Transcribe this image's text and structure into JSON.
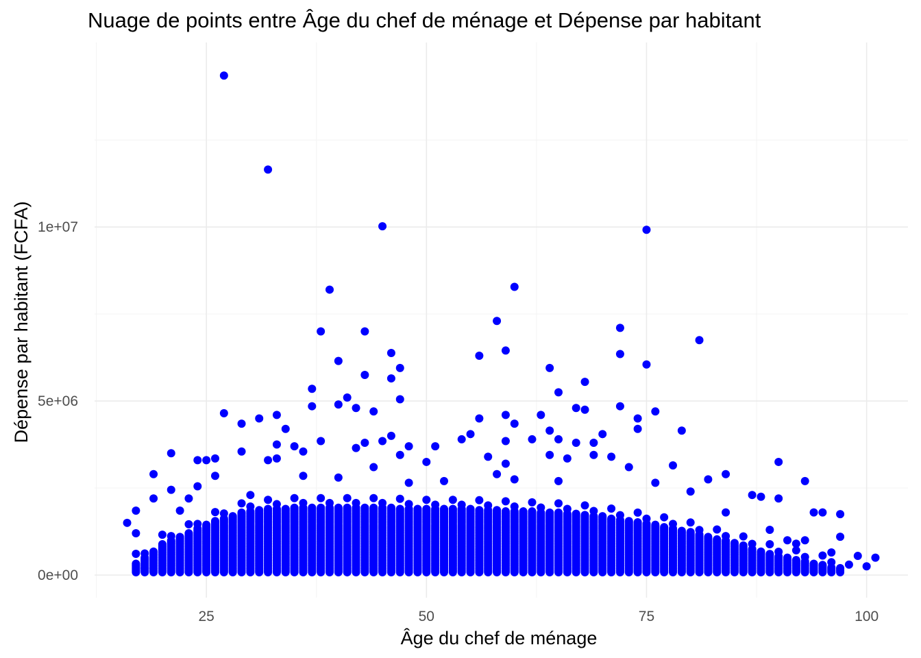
{
  "colors": {
    "point": "#0000ff",
    "background": "#ffffff",
    "grid_major": "#ebebeb",
    "grid_minor": "#f3f3f3",
    "tick_text": "#4d4d4d",
    "title_text": "#000000"
  },
  "chart_data": {
    "type": "scatter",
    "title": "Nuage de points entre Âge du chef de ménage et Dépense par habitant",
    "xlabel": "Âge du chef de ménage",
    "ylabel": "Dépense par habitant (FCFA)",
    "xlim": [
      12.3,
      104.7
    ],
    "ylim": [
      -650000,
      15300000
    ],
    "x_ticks": [
      25,
      50,
      75,
      100
    ],
    "x_tick_labels": [
      "25",
      "50",
      "75",
      "100"
    ],
    "y_ticks": [
      0,
      5000000,
      10000000
    ],
    "y_tick_labels": [
      "0e+00",
      "5e+06",
      "1e+07"
    ],
    "grid": true,
    "legend": "none",
    "dense_band_note": "Dense vertical columns of points at each integer age 17–97 from about 0 to ~1.9e+06, rendered from the 'band' profile below",
    "band": {
      "age_min": 17,
      "age_max": 97,
      "y_min": 80000,
      "profile": [
        [
          17,
          350000
        ],
        [
          18,
          500000
        ],
        [
          19,
          700000
        ],
        [
          20,
          900000
        ],
        [
          21,
          1000000
        ],
        [
          22,
          1100000
        ],
        [
          23,
          1200000
        ],
        [
          24,
          1350000
        ],
        [
          25,
          1450000
        ],
        [
          26,
          1550000
        ],
        [
          27,
          1650000
        ],
        [
          28,
          1720000
        ],
        [
          29,
          1800000
        ],
        [
          30,
          1850000
        ],
        [
          32,
          1900000
        ],
        [
          35,
          1950000
        ],
        [
          40,
          1950000
        ],
        [
          45,
          1950000
        ],
        [
          50,
          1900000
        ],
        [
          55,
          1900000
        ],
        [
          60,
          1850000
        ],
        [
          65,
          1800000
        ],
        [
          70,
          1700000
        ],
        [
          72,
          1600000
        ],
        [
          75,
          1500000
        ],
        [
          78,
          1350000
        ],
        [
          80,
          1250000
        ],
        [
          82,
          1100000
        ],
        [
          84,
          1000000
        ],
        [
          86,
          850000
        ],
        [
          88,
          700000
        ],
        [
          90,
          550000
        ],
        [
          92,
          450000
        ],
        [
          94,
          350000
        ],
        [
          96,
          250000
        ],
        [
          97,
          200000
        ]
      ]
    },
    "points": [
      [
        27,
        14350000
      ],
      [
        32,
        11650000
      ],
      [
        45,
        10020000
      ],
      [
        75,
        9920000
      ],
      [
        39,
        8200000
      ],
      [
        60,
        8280000
      ],
      [
        58,
        7300000
      ],
      [
        38,
        7000000
      ],
      [
        43,
        7000000
      ],
      [
        72,
        7100000
      ],
      [
        81,
        6750000
      ],
      [
        59,
        6450000
      ],
      [
        46,
        6380000
      ],
      [
        72,
        6350000
      ],
      [
        56,
        6300000
      ],
      [
        40,
        6150000
      ],
      [
        75,
        6050000
      ],
      [
        47,
        5950000
      ],
      [
        64,
        5950000
      ],
      [
        43,
        5750000
      ],
      [
        46,
        5650000
      ],
      [
        68,
        5550000
      ],
      [
        37,
        5350000
      ],
      [
        65,
        5250000
      ],
      [
        41,
        5100000
      ],
      [
        47,
        5050000
      ],
      [
        40,
        4900000
      ],
      [
        37,
        4850000
      ],
      [
        42,
        4800000
      ],
      [
        67,
        4800000
      ],
      [
        72,
        4850000
      ],
      [
        68,
        4750000
      ],
      [
        76,
        4700000
      ],
      [
        44,
        4700000
      ],
      [
        27,
        4650000
      ],
      [
        33,
        4600000
      ],
      [
        59,
        4600000
      ],
      [
        63,
        4600000
      ],
      [
        31,
        4500000
      ],
      [
        56,
        4500000
      ],
      [
        74,
        4500000
      ],
      [
        29,
        4350000
      ],
      [
        60,
        4350000
      ],
      [
        74,
        4200000
      ],
      [
        34,
        4200000
      ],
      [
        79,
        4150000
      ],
      [
        64,
        4150000
      ],
      [
        70,
        4050000
      ],
      [
        55,
        4050000
      ],
      [
        46,
        4000000
      ],
      [
        54,
        3900000
      ],
      [
        62,
        3900000
      ],
      [
        45,
        3850000
      ],
      [
        59,
        3850000
      ],
      [
        65,
        3900000
      ],
      [
        38,
        3850000
      ],
      [
        69,
        3800000
      ],
      [
        67,
        3800000
      ],
      [
        43,
        3800000
      ],
      [
        33,
        3750000
      ],
      [
        48,
        3700000
      ],
      [
        51,
        3700000
      ],
      [
        35,
        3700000
      ],
      [
        42,
        3650000
      ],
      [
        36,
        3550000
      ],
      [
        29,
        3550000
      ],
      [
        21,
        3500000
      ],
      [
        47,
        3450000
      ],
      [
        64,
        3450000
      ],
      [
        69,
        3450000
      ],
      [
        57,
        3400000
      ],
      [
        71,
        3400000
      ],
      [
        33,
        3350000
      ],
      [
        66,
        3350000
      ],
      [
        24,
        3300000
      ],
      [
        25,
        3300000
      ],
      [
        26,
        3350000
      ],
      [
        32,
        3300000
      ],
      [
        50,
        3250000
      ],
      [
        90,
        3250000
      ],
      [
        59,
        3200000
      ],
      [
        78,
        3150000
      ],
      [
        73,
        3100000
      ],
      [
        44,
        3100000
      ],
      [
        58,
        2900000
      ],
      [
        84,
        2900000
      ],
      [
        19,
        2900000
      ],
      [
        26,
        2850000
      ],
      [
        36,
        2850000
      ],
      [
        40,
        2800000
      ],
      [
        82,
        2750000
      ],
      [
        60,
        2750000
      ],
      [
        93,
        2700000
      ],
      [
        65,
        2700000
      ],
      [
        21,
        2450000
      ],
      [
        24,
        2550000
      ],
      [
        76,
        2650000
      ],
      [
        52,
        2700000
      ],
      [
        48,
        2650000
      ],
      [
        30,
        2300000
      ],
      [
        87,
        2300000
      ],
      [
        80,
        2400000
      ],
      [
        19,
        2200000
      ],
      [
        88,
        2250000
      ],
      [
        90,
        2200000
      ],
      [
        23,
        2200000
      ],
      [
        22,
        1850000
      ],
      [
        94,
        1800000
      ],
      [
        95,
        1800000
      ],
      [
        97,
        1750000
      ],
      [
        17,
        1850000
      ],
      [
        84,
        1800000
      ],
      [
        16,
        1500000
      ],
      [
        89,
        1300000
      ],
      [
        93,
        1000000
      ],
      [
        96,
        650000
      ],
      [
        97,
        1100000
      ],
      [
        98,
        300000
      ],
      [
        99,
        550000
      ],
      [
        100,
        250000
      ],
      [
        101,
        500000
      ],
      [
        91,
        1000000
      ],
      [
        92,
        900000
      ],
      [
        97,
        200000
      ],
      [
        17,
        1200000
      ],
      [
        18,
        200000
      ]
    ]
  }
}
